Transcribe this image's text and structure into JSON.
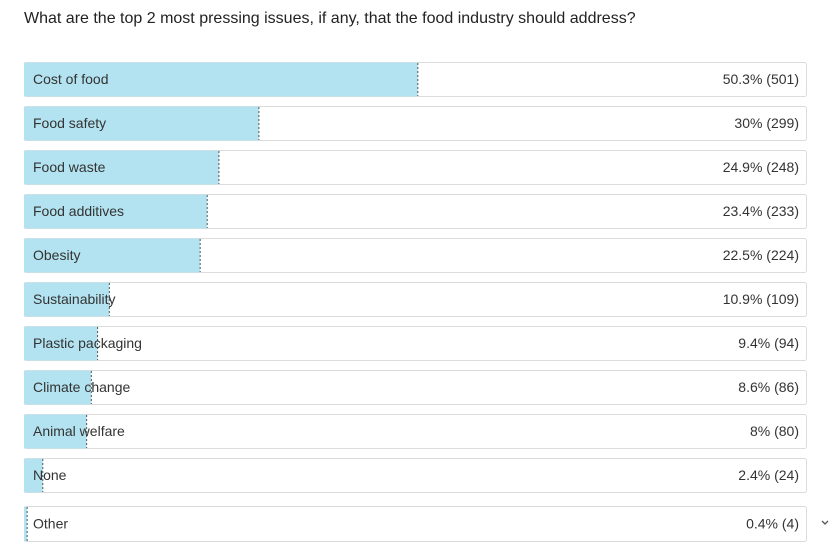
{
  "chart_data": {
    "type": "bar",
    "title": "What are the top 2 most pressing issues, if any, that the food industry should address?",
    "categories": [
      "Cost of food",
      "Food safety",
      "Food waste",
      "Food additives",
      "Obesity",
      "Sustainability",
      "Plastic packaging",
      "Climate change",
      "Animal welfare",
      "None",
      "Other"
    ],
    "values": [
      50.3,
      30,
      24.9,
      23.4,
      22.5,
      10.9,
      9.4,
      8.6,
      8,
      2.4,
      0.4
    ],
    "value_labels": [
      "50.3% (501)",
      "30% (299)",
      "24.9% (248)",
      "23.4% (233)",
      "22.5% (224)",
      "10.9% (109)",
      "9.4% (94)",
      "8.6% (86)",
      "8% (80)",
      "2.4% (24)",
      "0.4% (4)"
    ],
    "xlim": [
      0,
      100
    ],
    "color": "#b3e3f0"
  }
}
